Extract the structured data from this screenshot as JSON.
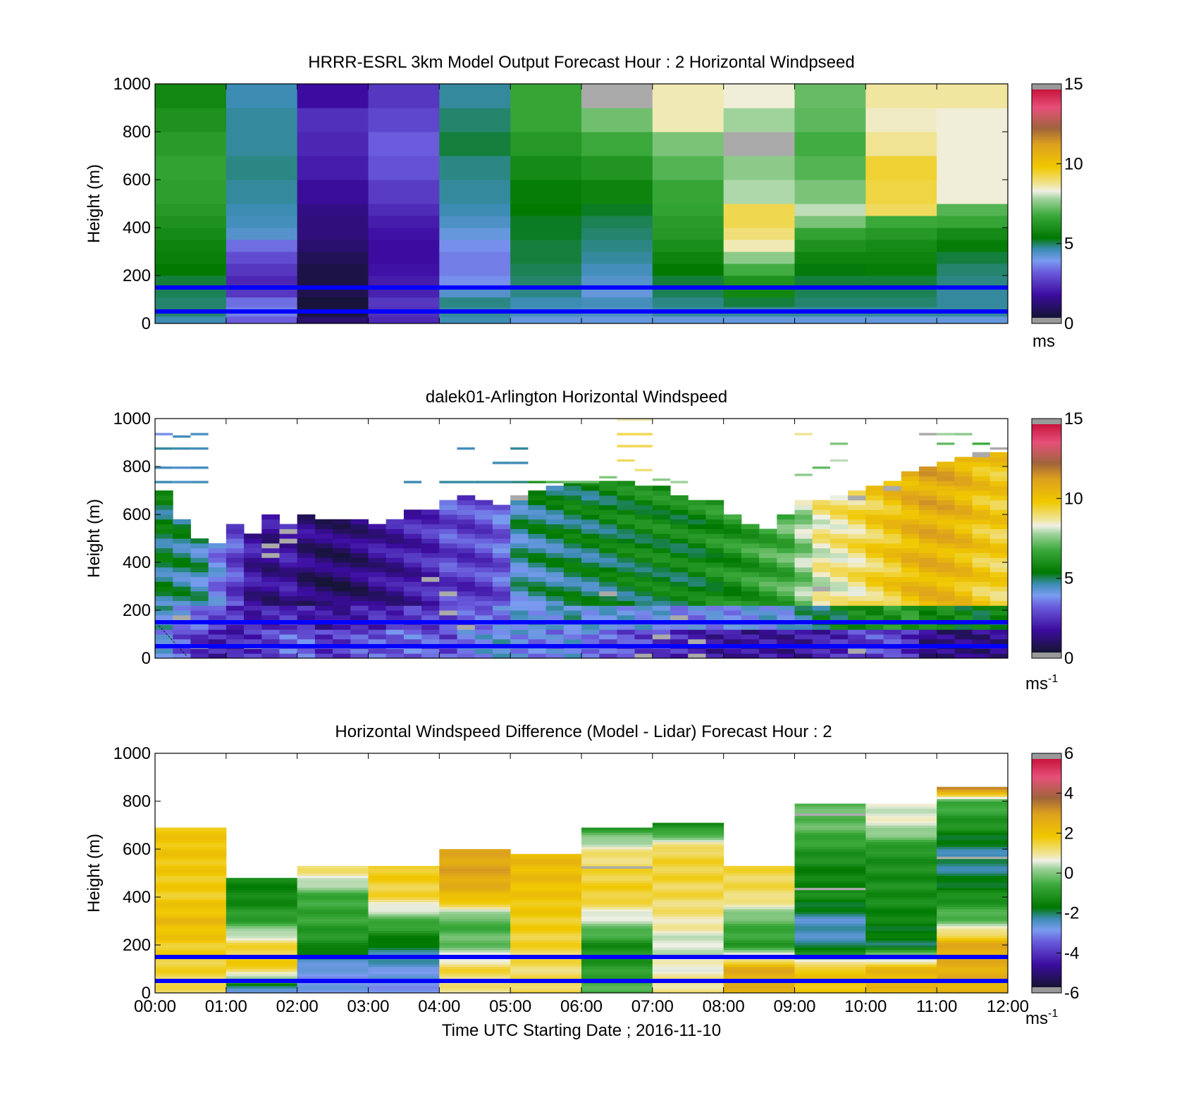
{
  "figure": {
    "xlabel": "Time UTC  Starting Date ; 2016-11-10",
    "xticks": [
      "00:00",
      "01:00",
      "02:00",
      "03:00",
      "04:00",
      "05:00",
      "06:00",
      "07:00",
      "08:00",
      "09:00",
      "10:00",
      "11:00",
      "12:00"
    ],
    "reference_lines_height_m": [
      150,
      50
    ],
    "reference_line_color": "#0000ff"
  },
  "chart_data": [
    {
      "type": "heatmap",
      "title": "HRRR-ESRL 3km Model Output   Forecast Hour : 2 Horizontal Windpseed",
      "ylabel": "Height (m)",
      "ylim": [
        0,
        1000
      ],
      "yticks": [
        0,
        200,
        400,
        600,
        800,
        1000
      ],
      "xlim_hours": [
        0,
        12
      ],
      "colorbar": {
        "range": [
          0,
          15
        ],
        "ticks": [
          "0",
          "5",
          "10",
          "15"
        ],
        "unit": "ms",
        "unit_sup": ""
      },
      "layout": "columns",
      "x_start_hours": [
        0,
        1,
        2,
        3,
        4,
        5,
        6,
        7,
        8,
        9,
        10,
        11
      ],
      "y_levels_m": [
        30,
        70,
        110,
        150,
        200,
        250,
        300,
        350,
        400,
        450,
        500,
        600,
        700,
        800,
        900,
        1000
      ],
      "values_ms": [
        [
          4.5,
          3.0,
          0.8,
          2.0,
          4.5,
          4.0,
          4.0,
          4.0,
          4.0,
          4.0,
          4.0,
          4.0
        ],
        [
          4.8,
          3.4,
          0.2,
          2.2,
          4.6,
          4.4,
          4.3,
          4.6,
          4.6,
          4.6,
          4.6,
          4.6
        ],
        [
          4.8,
          3.2,
          0.1,
          2.3,
          4.7,
          4.5,
          4.4,
          4.7,
          5.0,
          4.8,
          4.8,
          4.6
        ],
        [
          4.9,
          2.3,
          0.4,
          1.9,
          4.2,
          4.7,
          4.0,
          4.9,
          5.7,
          4.9,
          4.9,
          4.6
        ],
        [
          5.0,
          2.0,
          0.3,
          1.8,
          3.6,
          4.8,
          4.2,
          5.0,
          6.0,
          5.0,
          5.0,
          4.7
        ],
        [
          5.3,
          2.3,
          0.3,
          1.6,
          3.4,
          4.9,
          4.4,
          5.3,
          6.8,
          5.2,
          5.4,
          4.8
        ],
        [
          5.5,
          2.7,
          0.5,
          1.5,
          3.4,
          5.0,
          4.6,
          5.6,
          7.6,
          5.6,
          5.6,
          5.0
        ],
        [
          5.6,
          3.2,
          0.8,
          1.5,
          3.6,
          5.0,
          4.7,
          5.9,
          8.6,
          6.0,
          5.8,
          5.4
        ],
        [
          5.8,
          4.2,
          1.0,
          1.6,
          4.0,
          5.1,
          4.8,
          6.2,
          9.0,
          6.5,
          6.2,
          5.8
        ],
        [
          6.0,
          4.4,
          1.0,
          1.8,
          4.3,
          5.1,
          4.9,
          6.3,
          9.3,
          7.4,
          6.7,
          6.6
        ],
        [
          6.2,
          4.5,
          1.1,
          2.1,
          4.5,
          5.3,
          5.1,
          6.5,
          9.3,
          8.0,
          9.2,
          7.0
        ],
        [
          6.4,
          4.6,
          1.4,
          2.4,
          4.6,
          5.4,
          5.6,
          6.6,
          7.9,
          7.4,
          9.4,
          8.4
        ],
        [
          6.5,
          4.7,
          1.8,
          2.8,
          4.7,
          5.8,
          6.1,
          7.0,
          7.6,
          7.0,
          9.5,
          8.4
        ],
        [
          6.3,
          4.6,
          2.0,
          3.0,
          5.0,
          6.2,
          6.7,
          7.4,
          16,
          6.8,
          8.8,
          8.4
        ],
        [
          6.0,
          4.6,
          2.2,
          2.6,
          4.8,
          6.6,
          7.3,
          8.6,
          7.8,
          7.1,
          8.5,
          8.4
        ],
        [
          5.7,
          4.5,
          1.5,
          2.3,
          4.6,
          6.6,
          16,
          8.6,
          8.4,
          7.2,
          8.7,
          8.7
        ]
      ]
    },
    {
      "type": "heatmap",
      "title": "dalek01-Arlington  Horizontal Windspeed",
      "ylabel": "Height (m)",
      "ylim": [
        0,
        1000
      ],
      "yticks": [
        0,
        200,
        400,
        600,
        800,
        1000
      ],
      "xlim_hours": [
        0,
        12
      ],
      "colorbar": {
        "range": [
          0,
          15
        ],
        "ticks": [
          "0",
          "5",
          "10",
          "15"
        ],
        "unit": "ms",
        "unit_sup": "-1"
      },
      "layout": "profiles",
      "profile_step_hours": 0.25,
      "profile_top_m": [
        690,
        580,
        500,
        480,
        550,
        510,
        590,
        560,
        590,
        580,
        580,
        570,
        560,
        580,
        620,
        620,
        650,
        670,
        660,
        640,
        680,
        700,
        720,
        730,
        740,
        740,
        730,
        720,
        710,
        680,
        660,
        650,
        600,
        560,
        540,
        600,
        650,
        660,
        680,
        700,
        720,
        740,
        770,
        800,
        820,
        840,
        850,
        860
      ],
      "profile_mean_ms": [
        4.7,
        4.5,
        4.3,
        3.4,
        2.5,
        1.4,
        1.1,
        1.4,
        0.8,
        0.6,
        0.6,
        0.8,
        1.2,
        1.3,
        1.6,
        1.8,
        2.4,
        2.2,
        2.4,
        2.8,
        4.2,
        4.4,
        4.5,
        4.8,
        4.7,
        4.9,
        5.1,
        5.2,
        5.3,
        5.2,
        5.3,
        5.6,
        5.8,
        6.1,
        6.4,
        6.6,
        7.4,
        8.3,
        8.5,
        8.8,
        9.3,
        9.7,
        10.2,
        10.5,
        10.4,
        10.1,
        9.6,
        9.4
      ],
      "low_level_ms": [
        3.8,
        2.8,
        2.2,
        1.8,
        1.9,
        2.2,
        2.6,
        3.0,
        3.0,
        2.3,
        2.5,
        2.8,
        2.8,
        3.0,
        3.2,
        3.0,
        2.7,
        3.5,
        3.8,
        4.0,
        3.8,
        3.6,
        3.5,
        3.8,
        3.4,
        3.0,
        2.8,
        2.6,
        2.4,
        2.0,
        1.8,
        1.6,
        1.6,
        1.4,
        1.5,
        1.4,
        1.6,
        1.8,
        2.0,
        2.4,
        2.6,
        2.6,
        2.2,
        1.2,
        1.0,
        0.9,
        1.1,
        1.3
      ],
      "upper_gates": [
        {
          "hour": 0.0,
          "top_m": 940,
          "ms": 3.6
        },
        {
          "hour": 0.25,
          "top_m": 930,
          "ms": 4.4
        },
        {
          "hour": 0.5,
          "top_m": 940,
          "ms": 4.3
        },
        {
          "hour": 0.0,
          "top_m": 880,
          "ms": 4.6
        },
        {
          "hour": 0.25,
          "top_m": 880,
          "ms": 4.5
        },
        {
          "hour": 0.5,
          "top_m": 880,
          "ms": 4.4
        },
        {
          "hour": 0.0,
          "top_m": 800,
          "ms": 4.4
        },
        {
          "hour": 0.25,
          "top_m": 800,
          "ms": 4.2
        },
        {
          "hour": 0.5,
          "top_m": 800,
          "ms": 4.4
        },
        {
          "hour": 0.0,
          "top_m": 740,
          "ms": 4.5
        },
        {
          "hour": 0.25,
          "top_m": 740,
          "ms": 4.3
        },
        {
          "hour": 0.5,
          "top_m": 740,
          "ms": 4.4
        },
        {
          "hour": 3.5,
          "top_m": 740,
          "ms": 4.5
        },
        {
          "hour": 4.0,
          "top_m": 740,
          "ms": 4.6
        },
        {
          "hour": 4.25,
          "top_m": 740,
          "ms": 4.6
        },
        {
          "hour": 4.5,
          "top_m": 740,
          "ms": 4.6
        },
        {
          "hour": 4.75,
          "top_m": 740,
          "ms": 4.6
        },
        {
          "hour": 5.0,
          "top_m": 740,
          "ms": 4.7
        },
        {
          "hour": 5.25,
          "top_m": 740,
          "ms": 6.0
        },
        {
          "hour": 5.5,
          "top_m": 740,
          "ms": 7.0
        },
        {
          "hour": 5.75,
          "top_m": 740,
          "ms": 7.3
        },
        {
          "hour": 6.0,
          "top_m": 740,
          "ms": 7.2
        },
        {
          "hour": 6.25,
          "top_m": 760,
          "ms": 7.5
        },
        {
          "hour": 6.5,
          "top_m": 830,
          "ms": 9.2
        },
        {
          "hour": 6.75,
          "top_m": 790,
          "ms": 9.0
        },
        {
          "hour": 7.0,
          "top_m": 750,
          "ms": 7.6
        },
        {
          "hour": 7.25,
          "top_m": 740,
          "ms": 7.8
        },
        {
          "hour": 6.5,
          "top_m": 1000,
          "ms": 8.6
        },
        {
          "hour": 6.75,
          "top_m": 1000,
          "ms": 8.6
        },
        {
          "hour": 6.5,
          "top_m": 940,
          "ms": 9.3
        },
        {
          "hour": 6.75,
          "top_m": 940,
          "ms": 9.3
        },
        {
          "hour": 6.5,
          "top_m": 890,
          "ms": 9.3
        },
        {
          "hour": 6.75,
          "top_m": 890,
          "ms": 9.3
        },
        {
          "hour": 4.25,
          "top_m": 880,
          "ms": 4.4
        },
        {
          "hour": 5.0,
          "top_m": 880,
          "ms": 4.6
        },
        {
          "hour": 4.75,
          "top_m": 820,
          "ms": 4.5
        },
        {
          "hour": 5.0,
          "top_m": 820,
          "ms": 4.5
        },
        {
          "hour": 9.0,
          "top_m": 770,
          "ms": 7.6
        },
        {
          "hour": 9.25,
          "top_m": 800,
          "ms": 7.2
        },
        {
          "hour": 9.5,
          "top_m": 830,
          "ms": 8.0
        },
        {
          "hour": 9.5,
          "top_m": 900,
          "ms": 7.5
        },
        {
          "hour": 9.0,
          "top_m": 940,
          "ms": 8.8
        },
        {
          "hour": 10.75,
          "top_m": 940,
          "ms": 16
        },
        {
          "hour": 11.0,
          "top_m": 940,
          "ms": 7.8
        },
        {
          "hour": 11.25,
          "top_m": 940,
          "ms": 7.6
        },
        {
          "hour": 11.0,
          "top_m": 900,
          "ms": 7.2
        },
        {
          "hour": 11.5,
          "top_m": 900,
          "ms": 6.8
        },
        {
          "hour": 11.75,
          "top_m": 880,
          "ms": 16
        }
      ]
    },
    {
      "type": "heatmap",
      "title": "Horizontal Windspeed Difference (Model - Lidar) Forecast Hour : 2",
      "ylabel": "Height (m)",
      "ylim": [
        0,
        1000
      ],
      "yticks": [
        0,
        200,
        400,
        600,
        800,
        1000
      ],
      "xlim_hours": [
        0,
        12
      ],
      "colorbar": {
        "range": [
          -6,
          6
        ],
        "ticks": [
          "-6",
          "-4",
          "-2",
          "0",
          "2",
          "4",
          "6"
        ],
        "unit": "ms",
        "unit_sup": "-1"
      },
      "layout": "hour-columns",
      "column_top_m": [
        690,
        480,
        530,
        530,
        600,
        575,
        690,
        710,
        530,
        790,
        790,
        860
      ],
      "anchor_heights_m": [
        10,
        100,
        200,
        300,
        400,
        500,
        600,
        700,
        800,
        900
      ],
      "diff_profiles": [
        [
          1.3,
          1.6,
          1.8,
          2.3,
          1.8,
          1.9,
          2.0,
          2.0,
          2.0,
          2.0
        ],
        [
          -2.8,
          1.8,
          1.5,
          -0.8,
          -1.5,
          -1.5,
          -1.5,
          -1.5,
          -1.5,
          -1.5
        ],
        [
          -3.0,
          -3.0,
          -1.3,
          -0.8,
          -0.7,
          1.1,
          1.1,
          1.1,
          1.1,
          1.1
        ],
        [
          -3.0,
          -2.8,
          -2.0,
          -0.5,
          1.5,
          1.8,
          1.8,
          1.8,
          1.8,
          1.8
        ],
        [
          1.0,
          1.5,
          -0.2,
          -0.6,
          2.3,
          3.0,
          2.8,
          2.8,
          2.8,
          2.8
        ],
        [
          1.5,
          1.3,
          1.6,
          1.8,
          2.0,
          2.3,
          2.3,
          2.3,
          2.3,
          2.3
        ],
        [
          -0.5,
          -1.0,
          -1.3,
          0.3,
          1.7,
          1.6,
          1.0,
          -1.2,
          -1.2,
          -1.2
        ],
        [
          1.2,
          0.8,
          0.4,
          1.0,
          1.4,
          1.6,
          1.5,
          -1.5,
          -1.5,
          -1.5
        ],
        [
          2.6,
          2.8,
          -1.0,
          -0.4,
          1.3,
          1.5,
          1.5,
          1.5,
          1.5,
          1.5
        ],
        [
          2.0,
          2.0,
          -2.4,
          -2.6,
          -1.4,
          -1.6,
          -1.0,
          -0.3,
          -0.3,
          -0.3
        ],
        [
          2.4,
          2.4,
          -2.0,
          -1.6,
          -1.3,
          -1.3,
          -1.1,
          0.6,
          0.6,
          0.6
        ],
        [
          2.6,
          2.7,
          2.8,
          -0.2,
          -1.3,
          -2.2,
          -2.3,
          -1.2,
          -0.5,
          7.0
        ]
      ]
    }
  ]
}
